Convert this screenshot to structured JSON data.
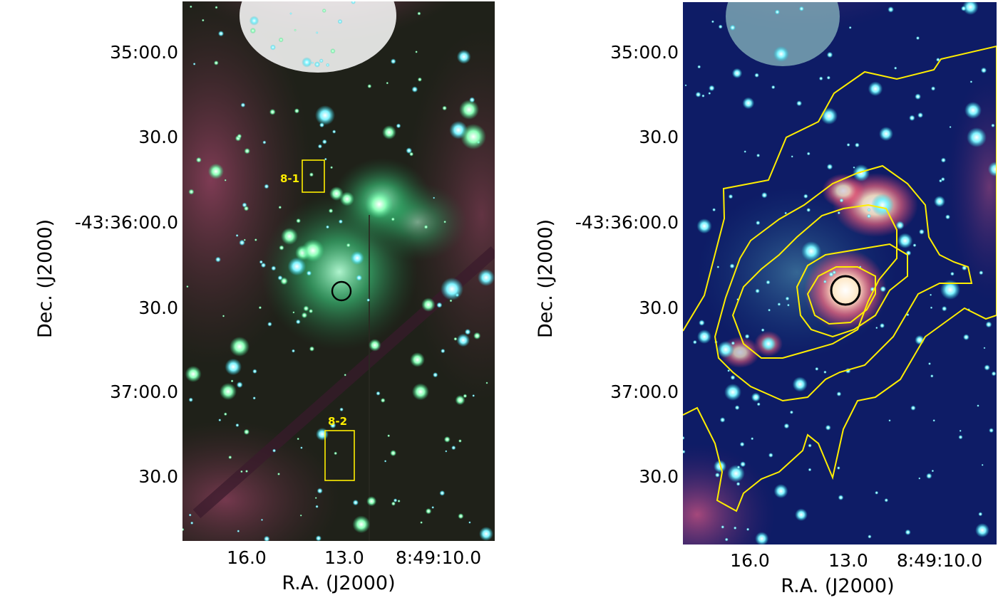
{
  "figure": {
    "left_panel": {
      "dec_ticks": [
        "35:00.0",
        "30.0",
        "-43:36:00.0",
        "30.0",
        "37:00.0",
        "30.0"
      ],
      "ra_ticks": [
        "16.0",
        "13.0",
        "8:49:10.0"
      ],
      "xlabel": "R.A. (J2000)",
      "ylabel": "Dec. (J2000)",
      "regions": [
        {
          "label": "8-1",
          "color": "#ffee00"
        },
        {
          "label": "8-2",
          "color": "#ffee00"
        }
      ],
      "source_marker": {
        "shape": "circle",
        "color": "#000000"
      }
    },
    "right_panel": {
      "dec_ticks": [
        "35:00.0",
        "30.0",
        "-43:36:00.0",
        "30.0",
        "37:00.0",
        "30.0"
      ],
      "ra_ticks": [
        "16.0",
        "13.0",
        "8:49:10.0"
      ],
      "xlabel": "R.A. (J2000)",
      "ylabel": "Dec. (J2000)",
      "contours": {
        "color": "#ffee00",
        "levels": 5
      },
      "source_marker": {
        "shape": "circle",
        "color": "#000000"
      }
    }
  }
}
